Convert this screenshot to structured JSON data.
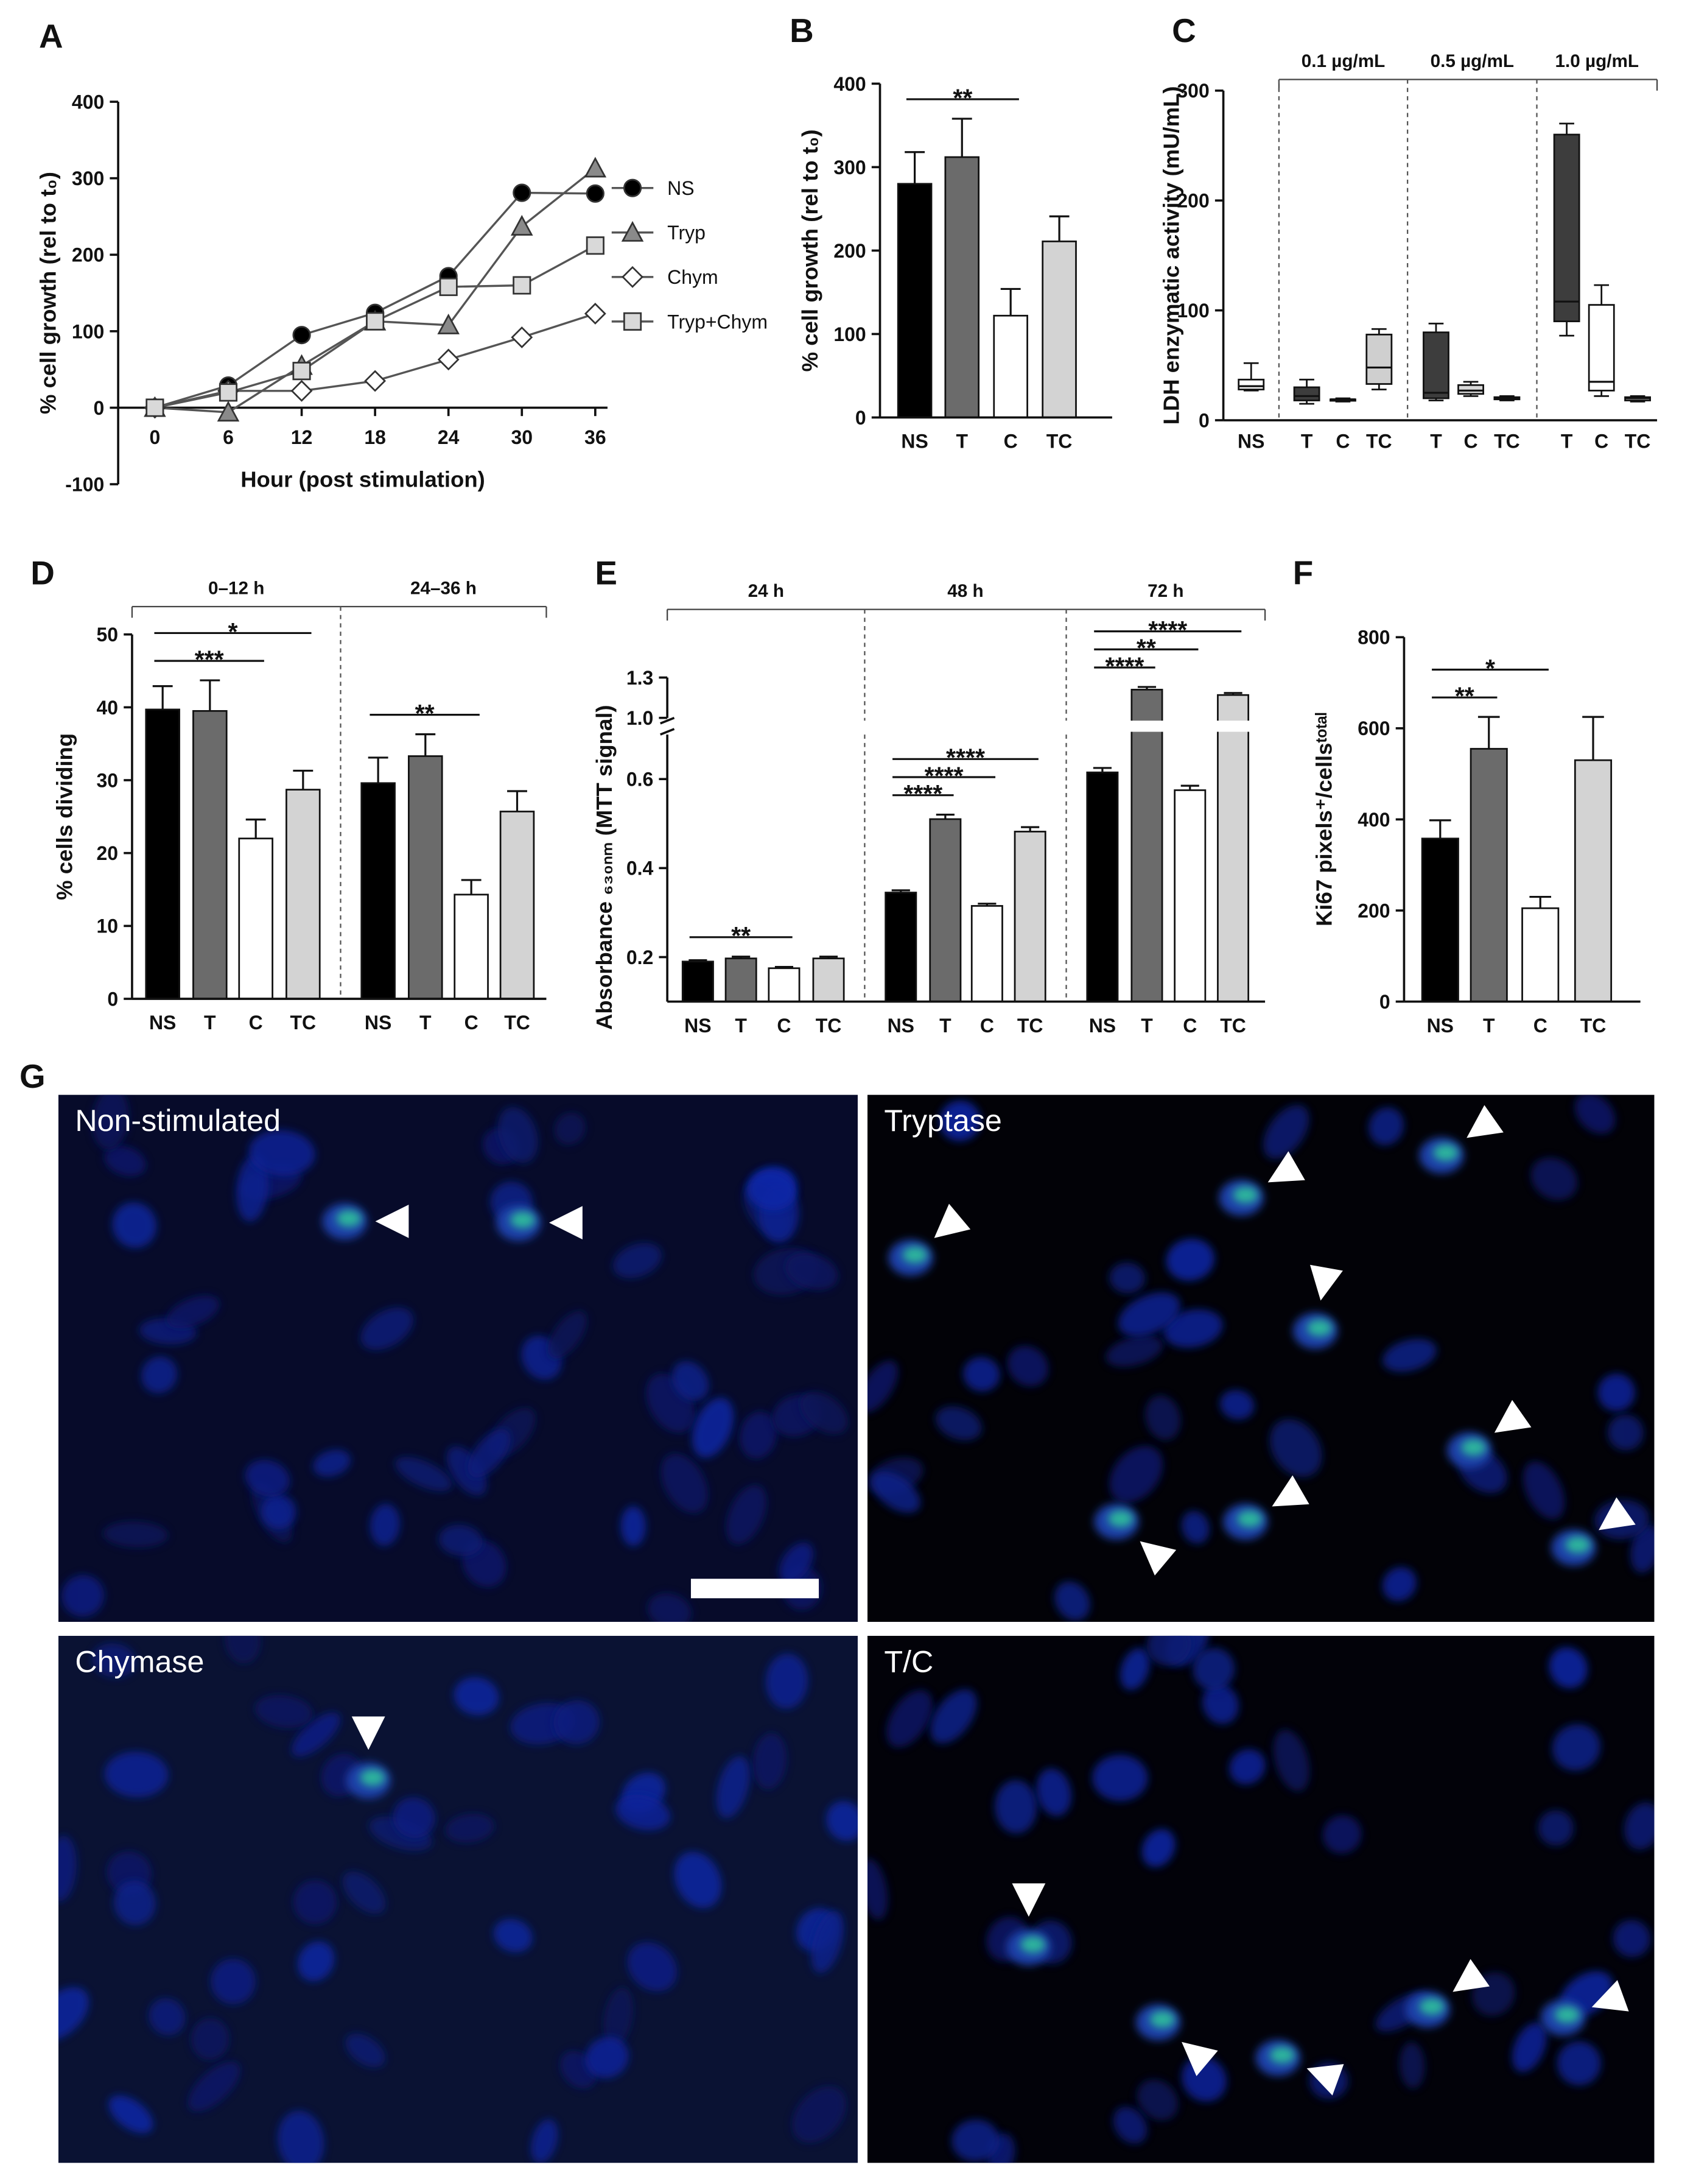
{
  "chart_data": [
    {
      "panel": "A",
      "type": "line",
      "x_label": "Hour (post stimulation)",
      "y_label": "% cell growth (rel to t₀)",
      "x": [
        0,
        6,
        12,
        18,
        24,
        30,
        36
      ],
      "xlim": [
        -3,
        37
      ],
      "xticks": [
        0,
        6,
        12,
        18,
        24,
        30,
        36
      ],
      "ylim": [
        -100,
        400
      ],
      "yticks": [
        -100,
        0,
        100,
        200,
        300,
        400
      ],
      "line_color": "#555555",
      "series": [
        {
          "name": "NS",
          "color": "#000000",
          "marker": "circle",
          "values": [
            0,
            29,
            95,
            124,
            172,
            281,
            280
          ]
        },
        {
          "name": "Tryp",
          "color": "#8a8a8a",
          "marker": "triangle",
          "values": [
            0,
            -6,
            55,
            113,
            108,
            237,
            313
          ]
        },
        {
          "name": "Chym",
          "color": "#ffffff",
          "marker": "diamond",
          "values": [
            0,
            22,
            22,
            35,
            63,
            92,
            123
          ]
        },
        {
          "name": "Tryp+Chym",
          "color": "#d9d9d9",
          "marker": "square",
          "values": [
            0,
            20,
            48,
            113,
            158,
            160,
            212
          ]
        }
      ]
    },
    {
      "panel": "B",
      "type": "bar",
      "y_label": "% cell growth (rel to t₀)",
      "categories": [
        "NS",
        "T",
        "C",
        "TC"
      ],
      "values": [
        280,
        312,
        122,
        211
      ],
      "errors": [
        38,
        46,
        32,
        30
      ],
      "colors": [
        "#000000",
        "#6b6b6b",
        "#ffffff",
        "#d3d3d3"
      ],
      "ylim": [
        0,
        400
      ],
      "yticks": [
        0,
        100,
        200,
        300,
        400
      ],
      "significance": [
        {
          "label": "**",
          "between": [
            "NS",
            "C"
          ]
        }
      ]
    },
    {
      "panel": "C",
      "type": "box",
      "y_label": "LDH enzymatic activity (mU/mL)",
      "ylim": [
        0,
        300
      ],
      "yticks": [
        0,
        100,
        200,
        300
      ],
      "groups": [
        {
          "categories": [
            "NS"
          ],
          "colors": [
            "#ffffff"
          ],
          "boxes": [
            [
              27,
              28,
              31,
              37,
              52
            ]
          ]
        },
        {
          "name": "0.1 µg/mL",
          "categories": [
            "T",
            "C",
            "TC"
          ],
          "colors": [
            "#3d3d3d",
            "#ffffff",
            "#cfcfcf"
          ],
          "boxes": [
            [
              15,
              18,
              22,
              30,
              37
            ],
            [
              17,
              18,
              19,
              19,
              20
            ],
            [
              28,
              33,
              48,
              78,
              83
            ]
          ]
        },
        {
          "name": "0.5 µg/mL",
          "categories": [
            "T",
            "C",
            "TC"
          ],
          "colors": [
            "#3d3d3d",
            "#d9d9d9",
            "#ffffff"
          ],
          "boxes": [
            [
              18,
              20,
              25,
              80,
              88
            ],
            [
              22,
              24,
              27,
              32,
              35
            ],
            [
              18,
              19,
              20,
              21,
              22
            ]
          ]
        },
        {
          "name": "1.0 µg/mL",
          "categories": [
            "T",
            "C",
            "TC"
          ],
          "colors": [
            "#3d3d3d",
            "#ffffff",
            "#cfcfcf"
          ],
          "boxes": [
            [
              77,
              90,
              108,
              260,
              270
            ],
            [
              22,
              27,
              35,
              105,
              123
            ],
            [
              17,
              18,
              20,
              21,
              22
            ]
          ]
        }
      ]
    },
    {
      "panel": "D",
      "type": "bar",
      "y_label": "% cells dividing",
      "ylim": [
        0,
        50
      ],
      "yticks": [
        0,
        10,
        20,
        30,
        40,
        50
      ],
      "colors": [
        "#000000",
        "#6b6b6b",
        "#ffffff",
        "#d3d3d3"
      ],
      "groups": [
        {
          "name": "0–12 h",
          "categories": [
            "NS",
            "T",
            "C",
            "TC"
          ],
          "values": [
            39.7,
            39.5,
            22,
            28.7
          ],
          "errors": [
            3.2,
            4.2,
            2.6,
            2.6
          ],
          "significance": [
            {
              "label": "***",
              "between": [
                "NS",
                "C"
              ]
            },
            {
              "label": "*",
              "between": [
                "NS",
                "TC"
              ]
            }
          ]
        },
        {
          "name": "24–36 h",
          "categories": [
            "NS",
            "T",
            "C",
            "TC"
          ],
          "values": [
            29.6,
            33.3,
            14.3,
            25.7
          ],
          "errors": [
            3.5,
            3,
            2,
            2.8
          ],
          "significance": [
            {
              "label": "**",
              "between": [
                "NS",
                "C"
              ]
            }
          ]
        }
      ]
    },
    {
      "panel": "E",
      "type": "bar",
      "y_label": "Absorbance ₆₃₀ₙₘ (MTT signal)",
      "ylim": [
        0.1,
        1.3
      ],
      "ybreak": [
        0.7,
        1.0
      ],
      "yticks": [
        0.2,
        0.4,
        0.6,
        {
          "value": 1,
          "label": "1.0"
        },
        1.3
      ],
      "colors": [
        "#000000",
        "#6b6b6b",
        "#ffffff",
        "#d3d3d3"
      ],
      "groups": [
        {
          "name": "24 h",
          "categories": [
            "NS",
            "T",
            "C",
            "TC"
          ],
          "values": [
            0.19,
            0.197,
            0.175,
            0.197
          ],
          "errors": [
            0.003,
            0.004,
            0.003,
            0.004
          ],
          "significance": [
            {
              "label": "**",
              "between": [
                "NS",
                "C"
              ]
            }
          ]
        },
        {
          "name": "48 h",
          "categories": [
            "NS",
            "T",
            "C",
            "TC"
          ],
          "values": [
            0.345,
            0.51,
            0.315,
            0.482
          ],
          "errors": [
            0.005,
            0.01,
            0.005,
            0.01
          ],
          "significance": [
            {
              "label": "****",
              "between": [
                "NS",
                "T"
              ]
            },
            {
              "label": "****",
              "between": [
                "NS",
                "C"
              ]
            },
            {
              "label": "****",
              "between": [
                "NS",
                "TC"
              ]
            }
          ]
        },
        {
          "name": "72 h",
          "categories": [
            "NS",
            "T",
            "C",
            "TC"
          ],
          "values": [
            0.615,
            1.21,
            0.575,
            1.17
          ],
          "errors": [
            0.01,
            0.02,
            0.01,
            0.015
          ],
          "significance": [
            {
              "label": "****",
              "between": [
                "NS",
                "T"
              ]
            },
            {
              "label": "**",
              "between": [
                "NS",
                "C"
              ]
            },
            {
              "label": "****",
              "between": [
                "NS",
                "TC"
              ]
            }
          ]
        }
      ]
    },
    {
      "panel": "F",
      "type": "bar",
      "y_label": "Ki67 pixels⁺/cellsᵗᵒᵗᵃˡ",
      "categories": [
        "NS",
        "T",
        "C",
        "TC"
      ],
      "values": [
        358,
        555,
        205,
        530
      ],
      "errors": [
        40,
        70,
        25,
        95
      ],
      "colors": [
        "#000000",
        "#6b6b6b",
        "#ffffff",
        "#d3d3d3"
      ],
      "ylim": [
        0,
        800
      ],
      "yticks": [
        0,
        200,
        400,
        600,
        800
      ],
      "significance": [
        {
          "label": "**",
          "between": [
            "NS",
            "T"
          ]
        },
        {
          "label": "*",
          "between": [
            "NS",
            "C"
          ]
        }
      ]
    }
  ],
  "images": {
    "panel": "G",
    "labels": [
      "Non-stimulated",
      "Tryptase",
      "Chymase",
      "T/C"
    ]
  }
}
